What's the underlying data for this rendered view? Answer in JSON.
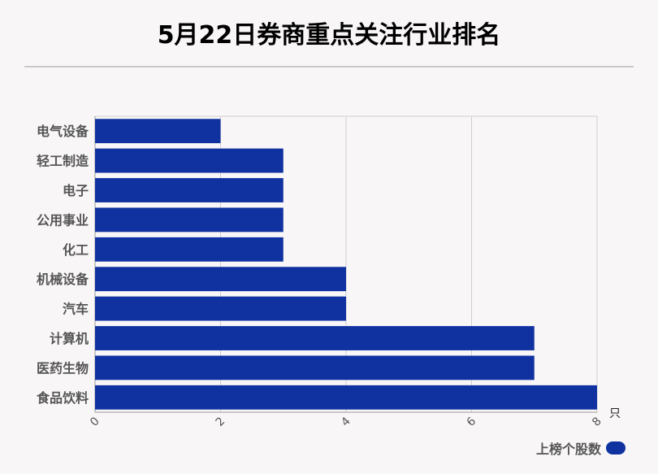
{
  "page": {
    "title": "5月22日券商重点关注行业排名"
  },
  "colors": {
    "bar": "#0f32a0",
    "grid": "#d0d0d0",
    "axis": "#9a9a9a"
  },
  "chart_data": {
    "type": "bar",
    "orientation": "horizontal",
    "title": "5月22日券商重点关注行业排名",
    "categories": [
      "电气设备",
      "轻工制造",
      "电子",
      "公用事业",
      "化工",
      "机械设备",
      "汽车",
      "计算机",
      "医药生物",
      "食品饮料"
    ],
    "series": [
      {
        "name": "上榜个股数",
        "values": [
          2,
          3,
          3,
          3,
          3,
          4,
          4,
          7,
          7,
          8
        ]
      }
    ],
    "xlim": [
      0,
      8
    ],
    "x_ticks": [
      "0",
      "2",
      "4",
      "6",
      "8"
    ],
    "x_unit": "只",
    "grid": true,
    "legend_position": "bottom-right"
  }
}
